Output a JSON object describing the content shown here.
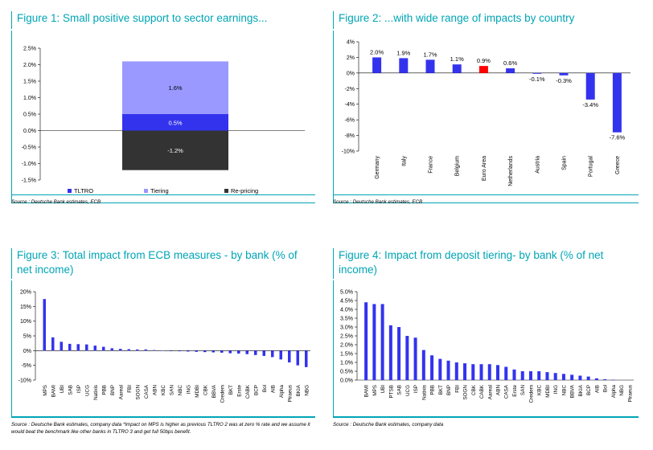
{
  "charts": [
    {
      "id": "fig1",
      "title_lines": [
        "Figure 1: Small positive support to sector earnings..."
      ],
      "source": "Source : Deutsche Bank estimates, ECB",
      "chart_data": {
        "type": "bar",
        "stacked": true,
        "categories": [
          ""
        ],
        "series": [
          {
            "name": "TLTRO",
            "values": [
              0.5
            ],
            "color": "#3333ee",
            "label": "0.5%"
          },
          {
            "name": "Tiering",
            "values": [
              1.6
            ],
            "color": "#9999ff",
            "label": "1.6%"
          },
          {
            "name": "Re-pricing",
            "values": [
              -1.2
            ],
            "color": "#333333",
            "label": "-1.2%"
          }
        ],
        "ylim": [
          -1.5,
          2.5
        ],
        "yticks": [
          "2.5%",
          "2.0%",
          "1.5%",
          "1.0%",
          "0.5%",
          "0.0%",
          "-0.5%",
          "-1.0%",
          "-1.5%"
        ],
        "legend": "bottom",
        "legend_entries": [
          "TLTRO",
          "Tiering",
          "Re-pricing"
        ]
      }
    },
    {
      "id": "fig2",
      "title_lines": [
        "Figure 2: ...with wide range of impacts by country"
      ],
      "source": "Source : Deutsche Bank estimates, ECB",
      "chart_data": {
        "type": "bar",
        "categories": [
          "Germany",
          "Italy",
          "France",
          "Belgium",
          "Euro Area",
          "Netherlands",
          "Austria",
          "Spain",
          "Portugal",
          "Greece"
        ],
        "values": [
          2.0,
          1.9,
          1.7,
          1.1,
          0.9,
          0.6,
          -0.1,
          -0.3,
          -3.4,
          -7.6
        ],
        "labels": [
          "2.0%",
          "1.9%",
          "1.7%",
          "1.1%",
          "0.9%",
          "0.6%",
          "-0.1%",
          "-0.3%",
          "-3.4%",
          "-7.6%"
        ],
        "highlight": {
          "Euro Area": "#ff0000"
        },
        "color": "#3333ee",
        "ylim": [
          -10,
          4
        ],
        "yticks": [
          "4%",
          "2%",
          "0%",
          "-2%",
          "-4%",
          "-6%",
          "-8%",
          "-10%"
        ]
      }
    },
    {
      "id": "fig3",
      "title_lines": [
        "Figure 3: Total impact from ECB measures - by bank (% of",
        "net income)"
      ],
      "source": "Source : Deutsche Bank estimates, company data *Impact on MPS is higher as previous TLTRO 2 was at zero % rate and we assume it would beat the benchmark like other banks in TLTRO 3 and get full 50bps benefit.",
      "chart_data": {
        "type": "bar",
        "categories": [
          "MPS",
          "BAMI",
          "UBI",
          "SAB",
          "ISP",
          "UCG",
          "Natixis",
          "PBB",
          "BNP",
          "Aareal",
          "FBI",
          "SOGN",
          "CASA",
          "ABN",
          "KBC",
          "SAN",
          "NBC",
          "ING",
          "MDBI",
          "CBK",
          "BBVA",
          "Credem",
          "BKT",
          "Erste",
          "CABK",
          "BCP",
          "Bol",
          "AIB",
          "Alpha",
          "Piraeus",
          "BKIA",
          "NBG"
        ],
        "values": [
          17.5,
          4.5,
          3.0,
          2.3,
          2.2,
          2.1,
          1.7,
          1.3,
          0.8,
          0.6,
          0.5,
          0.4,
          0.4,
          0.2,
          0.1,
          -0.1,
          -0.2,
          -0.3,
          -0.4,
          -0.5,
          -0.6,
          -0.7,
          -0.9,
          -1.0,
          -1.2,
          -1.5,
          -1.8,
          -2.2,
          -3.0,
          -4.0,
          -5.0,
          -5.6
        ],
        "color": "#3333ee",
        "ylim": [
          -10,
          20
        ],
        "yticks": [
          "20%",
          "15%",
          "10%",
          "5%",
          "0%",
          "-5%",
          "-10%"
        ]
      }
    },
    {
      "id": "fig4",
      "title_lines": [
        "Figure 4: Impact from deposit tiering- by bank (% of net",
        "income)"
      ],
      "source": "Source : Deutsche Bank estimates, company data",
      "chart_data": {
        "type": "bar",
        "categories": [
          "BAMI",
          "MPS",
          "UBI",
          "PTSB",
          "SAB",
          "UCG",
          "ISP",
          "Natixis",
          "PBB",
          "BKT",
          "BNP",
          "FBI",
          "SOGN",
          "CBK",
          "CABK",
          "Aareal",
          "ABN",
          "CASA",
          "Erste",
          "SAN",
          "Credem",
          "KBC",
          "MDBI",
          "ING",
          "NBC",
          "BBVA",
          "BKIA",
          "BCP",
          "AIB",
          "Bol",
          "Alpha",
          "NBG",
          "Piraeus"
        ],
        "values": [
          4.4,
          4.3,
          4.3,
          3.1,
          3.0,
          2.5,
          2.4,
          1.7,
          1.4,
          1.2,
          1.1,
          1.0,
          0.95,
          0.9,
          0.9,
          0.9,
          0.85,
          0.75,
          0.6,
          0.5,
          0.5,
          0.5,
          0.45,
          0.4,
          0.35,
          0.3,
          0.25,
          0.2,
          0.1,
          0.05,
          0.02,
          0.0,
          0.0
        ],
        "color": "#3333ee",
        "ylim": [
          0,
          5
        ],
        "yticks": [
          "5.0%",
          "4.5%",
          "4.0%",
          "3.5%",
          "3.0%",
          "2.5%",
          "2.0%",
          "1.5%",
          "1.0%",
          "0.5%",
          "0.0%"
        ]
      }
    }
  ]
}
